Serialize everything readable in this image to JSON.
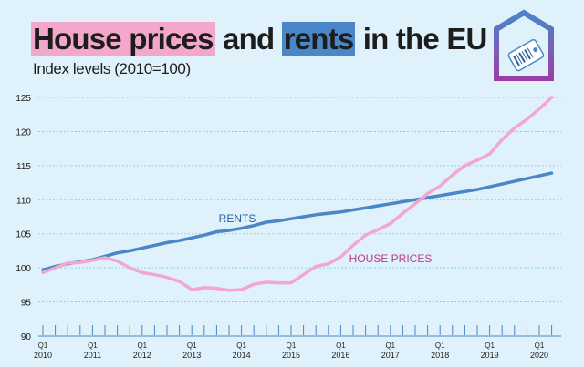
{
  "header": {
    "title_part1": "House prices",
    "title_part2": "and",
    "title_part3": "rents",
    "title_part4": "in the EU",
    "subtitle": "Index levels (2010=100)"
  },
  "logo": {
    "icon": "price-tag-house-icon"
  },
  "colors": {
    "background": "#dff1fa",
    "rents": "#4a86c8",
    "house_prices": "#f3a7cd",
    "title_highlight_pink": "#f3a7cd",
    "title_highlight_blue": "#4a86c8",
    "grid": "#7ec8e3"
  },
  "chart_data": {
    "type": "line",
    "title": "House prices and rents in the EU",
    "subtitle": "Index levels (2010=100)",
    "xlabel": "",
    "ylabel": "",
    "ylim": [
      90,
      125
    ],
    "y_ticks": [
      90,
      95,
      100,
      105,
      110,
      115,
      120,
      125
    ],
    "x_tick_labels": [
      {
        "q": "Q1",
        "year": "2010"
      },
      {
        "q": "Q1",
        "year": "2011"
      },
      {
        "q": "Q1",
        "year": "2012"
      },
      {
        "q": "Q1",
        "year": "2013"
      },
      {
        "q": "Q1",
        "year": "2014"
      },
      {
        "q": "Q1",
        "year": "2015"
      },
      {
        "q": "Q1",
        "year": "2016"
      },
      {
        "q": "Q1",
        "year": "2017"
      },
      {
        "q": "Q1",
        "year": "2018"
      },
      {
        "q": "Q1",
        "year": "2019"
      },
      {
        "q": "Q1",
        "year": "2020"
      }
    ],
    "x": [
      "2010-Q1",
      "2010-Q2",
      "2010-Q3",
      "2010-Q4",
      "2011-Q1",
      "2011-Q2",
      "2011-Q3",
      "2011-Q4",
      "2012-Q1",
      "2012-Q2",
      "2012-Q3",
      "2012-Q4",
      "2013-Q1",
      "2013-Q2",
      "2013-Q3",
      "2013-Q4",
      "2014-Q1",
      "2014-Q2",
      "2014-Q3",
      "2014-Q4",
      "2015-Q1",
      "2015-Q2",
      "2015-Q3",
      "2015-Q4",
      "2016-Q1",
      "2016-Q2",
      "2016-Q3",
      "2016-Q4",
      "2017-Q1",
      "2017-Q2",
      "2017-Q3",
      "2017-Q4",
      "2018-Q1",
      "2018-Q2",
      "2018-Q3",
      "2018-Q4",
      "2019-Q1",
      "2019-Q2",
      "2019-Q3",
      "2019-Q4",
      "2020-Q1",
      "2020-Q2"
    ],
    "grid": true,
    "series": [
      {
        "name": "RENTS",
        "values": [
          99.7,
          100.2,
          100.6,
          100.9,
          101.2,
          101.7,
          102.2,
          102.5,
          102.9,
          103.3,
          103.7,
          104.0,
          104.4,
          104.8,
          105.3,
          105.5,
          105.8,
          106.2,
          106.7,
          106.9,
          107.2,
          107.5,
          107.8,
          108.0,
          108.2,
          108.5,
          108.8,
          109.1,
          109.4,
          109.7,
          110.0,
          110.3,
          110.6,
          110.9,
          111.2,
          111.5,
          111.9,
          112.3,
          112.7,
          113.1,
          113.5,
          113.9
        ]
      },
      {
        "name": "HOUSE PRICES",
        "values": [
          99.3,
          100.0,
          100.7,
          100.8,
          101.1,
          101.5,
          101.0,
          100.0,
          99.3,
          99.0,
          98.6,
          98.0,
          96.8,
          97.1,
          97.0,
          96.7,
          96.8,
          97.6,
          97.9,
          97.8,
          97.8,
          99.0,
          100.2,
          100.6,
          101.6,
          103.3,
          104.8,
          105.6,
          106.5,
          108.0,
          109.4,
          110.9,
          112.0,
          113.6,
          115.0,
          115.8,
          116.7,
          118.8,
          120.5,
          121.8,
          123.3,
          125.0
        ]
      }
    ],
    "annotations": [
      {
        "text": "RENTS",
        "series": "RENTS"
      },
      {
        "text": "HOUSE PRICES",
        "series": "HOUSE PRICES"
      }
    ]
  }
}
